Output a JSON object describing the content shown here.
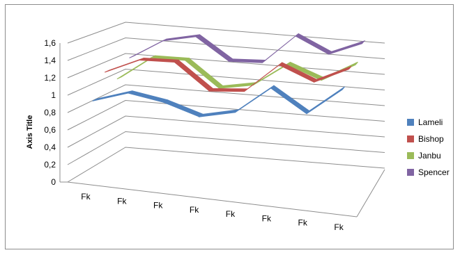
{
  "chart_data": {
    "type": "line",
    "style": "3d",
    "categories": [
      "Fk",
      "Fk",
      "Fk",
      "Fk",
      "Fk",
      "Fk",
      "Fk",
      "Fk"
    ],
    "ylabel": "Axis Title",
    "ylim": [
      0,
      1.6
    ],
    "yticks": [
      "0",
      "0,2",
      "0,4",
      "0,6",
      "0,8",
      "1",
      "1,2",
      "1,4",
      "1,6"
    ],
    "grid": true,
    "legend_position": "right",
    "series": [
      {
        "name": "Lameli",
        "color": "#4f81bd",
        "values": [
          0.92,
          1.06,
          1.0,
          0.88,
          0.98,
          1.31,
          1.06,
          1.39
        ]
      },
      {
        "name": "Bishop",
        "color": "#c0504d",
        "values": [
          1.19,
          1.38,
          1.4,
          1.1,
          1.14,
          1.5,
          1.34,
          1.54
        ]
      },
      {
        "name": "Janbu",
        "color": "#9bbb59",
        "values": [
          1.04,
          1.34,
          1.35,
          1.05,
          1.13,
          1.42,
          1.27,
          1.5
        ]
      },
      {
        "name": "Spencer",
        "color": "#8064a2",
        "values": [
          1.23,
          1.48,
          1.57,
          1.3,
          1.32,
          1.69,
          1.5,
          1.67
        ]
      }
    ]
  }
}
